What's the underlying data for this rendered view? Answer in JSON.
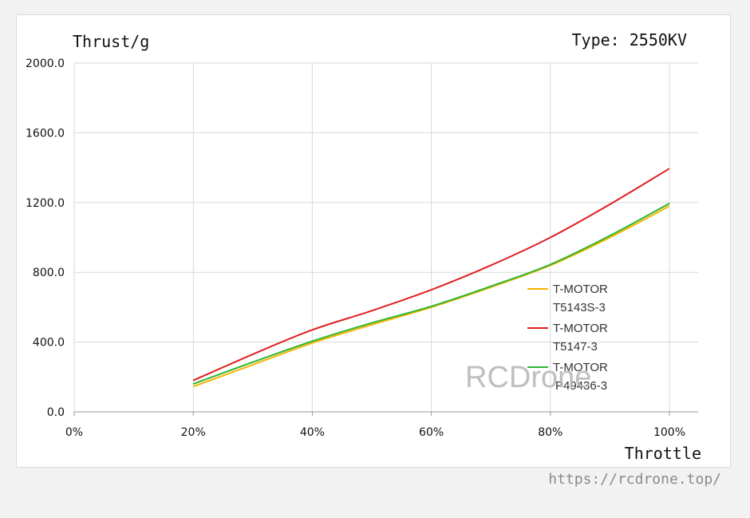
{
  "chart_data": {
    "type": "line",
    "ylabel": "Thrust/g",
    "xlabel": "Throttle",
    "annotation": "Type: 2550KV",
    "x": [
      20,
      30,
      40,
      50,
      60,
      70,
      80,
      90,
      100
    ],
    "x_tick_labels": [
      "0%",
      "20%",
      "40%",
      "60%",
      "80%",
      "100%"
    ],
    "x_ticks": [
      0,
      20,
      40,
      60,
      80,
      100
    ],
    "xlim": [
      0,
      100
    ],
    "y_tick_labels": [
      "2000.0",
      "1600.0",
      "1200.0",
      "800.0",
      "400.0",
      "0.0"
    ],
    "y_ticks": [
      2000,
      1600,
      1200,
      800,
      400,
      0
    ],
    "ylim": [
      0,
      2000
    ],
    "grid": true,
    "legend_position": "right",
    "series": [
      {
        "name": "T-MOTOR T5143S-3",
        "legend_lines": [
          "T-MOTOR",
          "T5143S-3"
        ],
        "color": "#f5b400",
        "values": [
          145,
          270,
          395,
          500,
          600,
          715,
          840,
          1000,
          1180
        ]
      },
      {
        "name": "T-MOTOR T5147-3",
        "legend_lines": [
          "T-MOTOR",
          "T5147-3"
        ],
        "color": "#e02020",
        "values": [
          180,
          330,
          470,
          580,
          700,
          840,
          1000,
          1190,
          1395
        ]
      },
      {
        "name": "T-MOTOR P49436-3",
        "legend_lines": [
          "T-MOTOR",
          "P49436-3"
        ],
        "color": "#2fb52f",
        "values": [
          160,
          285,
          405,
          510,
          605,
          720,
          845,
          1010,
          1195
        ]
      }
    ]
  },
  "watermark": "RCDrone",
  "footer_url": "https://rcdrone.top/"
}
